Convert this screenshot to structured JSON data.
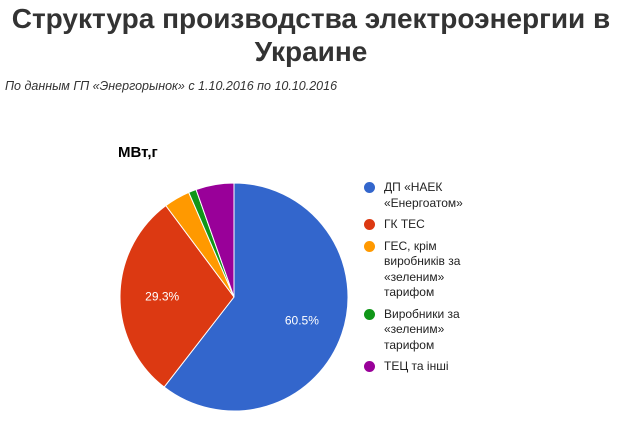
{
  "page": {
    "headline": "Структура производства электроэнергии в Украине",
    "subtitle": "По данным ГП «Энергорынок» с 1.10.2016 по 10.10.2016"
  },
  "chart_data": {
    "type": "pie",
    "title": "МВт,г",
    "legend_position": "right",
    "slices": [
      {
        "name": "ДП «НАЕК «Енергоатом»",
        "value": 60.5,
        "color": "#3366cc",
        "label": "60.5%"
      },
      {
        "name": "ГК ТЕС",
        "value": 29.3,
        "color": "#dc3912",
        "label": "29.3%"
      },
      {
        "name": "ГЕС, крім виробників за «зеленим» тарифом",
        "value": 3.7,
        "color": "#ff9900",
        "label": ""
      },
      {
        "name": "Виробники за «зеленим» тарифом",
        "value": 1.1,
        "color": "#109618",
        "label": ""
      },
      {
        "name": "ТЕЦ та інші",
        "value": 5.4,
        "color": "#990099",
        "label": ""
      }
    ]
  },
  "legend_wrapped": [
    "ДП «НАЕК\n«Енергоатом»",
    "ГК ТЕС",
    "ГЕС, крім\nвиробників за\n«зеленим»\nтарифом",
    "Виробники за\n«зеленим»\nтарифом",
    "ТЕЦ та інші"
  ]
}
